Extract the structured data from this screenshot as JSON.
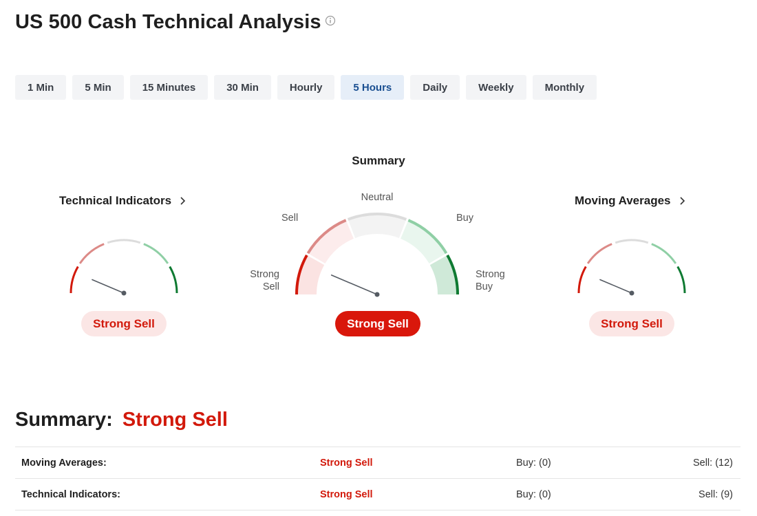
{
  "title": "US 500 Cash Technical Analysis",
  "timeframes": [
    {
      "label": "1 Min",
      "active": false
    },
    {
      "label": "5 Min",
      "active": false
    },
    {
      "label": "15 Minutes",
      "active": false
    },
    {
      "label": "30 Min",
      "active": false
    },
    {
      "label": "Hourly",
      "active": false
    },
    {
      "label": "5 Hours",
      "active": true
    },
    {
      "label": "Daily",
      "active": false
    },
    {
      "label": "Weekly",
      "active": false
    },
    {
      "label": "Monthly",
      "active": false
    }
  ],
  "summary_gauge": {
    "heading": "Summary",
    "labels": {
      "strong_sell": "Strong Sell",
      "sell": "Sell",
      "neutral": "Neutral",
      "buy": "Buy",
      "strong_buy": "Strong Buy"
    },
    "verdict": "Strong Sell"
  },
  "technical_indicators": {
    "title": "Technical Indicators",
    "verdict": "Strong Sell"
  },
  "moving_averages": {
    "title": "Moving Averages",
    "verdict": "Strong Sell"
  },
  "summary": {
    "label": "Summary:",
    "verdict": "Strong Sell",
    "rows": [
      {
        "name": "Moving Averages:",
        "verdict": "Strong Sell",
        "buy": "Buy: (0)",
        "sell": "Sell: (12)"
      },
      {
        "name": "Technical Indicators:",
        "verdict": "Strong Sell",
        "buy": "Buy: (0)",
        "sell": "Sell: (9)"
      }
    ]
  },
  "colors": {
    "strong_sell": "#d2190b",
    "sell": "#dc8a87",
    "neutral": "#dcdcdc",
    "buy": "#8fcfa5",
    "strong_buy": "#0f7a32",
    "active_tab_bg": "#e6eef8",
    "active_tab_text": "#1a4f91"
  },
  "icons": {
    "info": "info-icon",
    "chevron": "chevron-right-icon"
  }
}
